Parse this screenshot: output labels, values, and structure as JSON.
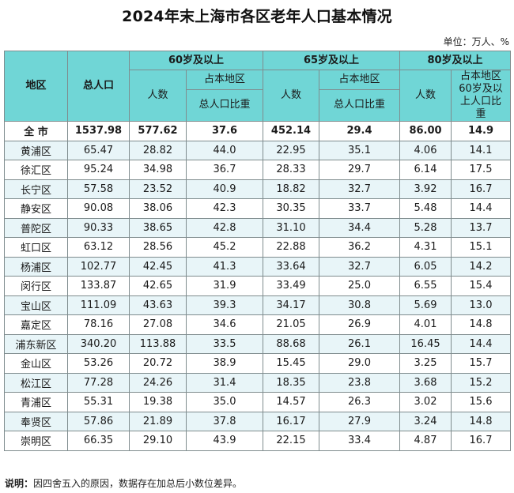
{
  "title": "2024年末上海市各区老年人口基本情况",
  "unit": "单位：万人、%",
  "colors": {
    "header_bg": "#70d6d6",
    "alt_row_bg": "#e8f5f8",
    "border": "#7f8c8e"
  },
  "table": {
    "headers": {
      "region": "地区",
      "total_population": "总人口",
      "group_60": "60岁及以上",
      "group_65": "65岁及以上",
      "group_80": "80岁及以上",
      "count": "人数",
      "share_line1": "占本地区",
      "share_line2": "总人口比重",
      "share_80": "占本地区60岁及以上人口比重"
    },
    "total_row": {
      "region": "全 市",
      "total": "1537.98",
      "p60": "577.62",
      "p60_share": "37.6",
      "p65": "452.14",
      "p65_share": "29.4",
      "p80": "86.00",
      "p80_share": "14.9"
    },
    "rows": [
      {
        "region": "黄浦区",
        "total": "65.47",
        "p60": "28.82",
        "p60_share": "44.0",
        "p65": "22.95",
        "p65_share": "35.1",
        "p80": "4.06",
        "p80_share": "14.1"
      },
      {
        "region": "徐汇区",
        "total": "95.24",
        "p60": "34.98",
        "p60_share": "36.7",
        "p65": "28.33",
        "p65_share": "29.7",
        "p80": "6.14",
        "p80_share": "17.5"
      },
      {
        "region": "长宁区",
        "total": "57.58",
        "p60": "23.52",
        "p60_share": "40.9",
        "p65": "18.82",
        "p65_share": "32.7",
        "p80": "3.92",
        "p80_share": "16.7"
      },
      {
        "region": "静安区",
        "total": "90.08",
        "p60": "38.06",
        "p60_share": "42.3",
        "p65": "30.35",
        "p65_share": "33.7",
        "p80": "5.48",
        "p80_share": "14.4"
      },
      {
        "region": "普陀区",
        "total": "90.33",
        "p60": "38.65",
        "p60_share": "42.8",
        "p65": "31.10",
        "p65_share": "34.4",
        "p80": "5.28",
        "p80_share": "13.7"
      },
      {
        "region": "虹口区",
        "total": "63.12",
        "p60": "28.56",
        "p60_share": "45.2",
        "p65": "22.88",
        "p65_share": "36.2",
        "p80": "4.31",
        "p80_share": "15.1"
      },
      {
        "region": "杨浦区",
        "total": "102.77",
        "p60": "42.45",
        "p60_share": "41.3",
        "p65": "33.64",
        "p65_share": "32.7",
        "p80": "6.05",
        "p80_share": "14.2"
      },
      {
        "region": "闵行区",
        "total": "133.87",
        "p60": "42.65",
        "p60_share": "31.9",
        "p65": "33.49",
        "p65_share": "25.0",
        "p80": "6.55",
        "p80_share": "15.4"
      },
      {
        "region": "宝山区",
        "total": "111.09",
        "p60": "43.63",
        "p60_share": "39.3",
        "p65": "34.17",
        "p65_share": "30.8",
        "p80": "5.69",
        "p80_share": "13.0"
      },
      {
        "region": "嘉定区",
        "total": "78.16",
        "p60": "27.08",
        "p60_share": "34.6",
        "p65": "21.05",
        "p65_share": "26.9",
        "p80": "4.01",
        "p80_share": "14.8"
      },
      {
        "region": "浦东新区",
        "total": "340.20",
        "p60": "113.88",
        "p60_share": "33.5",
        "p65": "88.68",
        "p65_share": "26.1",
        "p80": "16.45",
        "p80_share": "14.4"
      },
      {
        "region": "金山区",
        "total": "53.26",
        "p60": "20.72",
        "p60_share": "38.9",
        "p65": "15.45",
        "p65_share": "29.0",
        "p80": "3.25",
        "p80_share": "15.7"
      },
      {
        "region": "松江区",
        "total": "77.28",
        "p60": "24.26",
        "p60_share": "31.4",
        "p65": "18.35",
        "p65_share": "23.8",
        "p80": "3.68",
        "p80_share": "15.2"
      },
      {
        "region": "青浦区",
        "total": "55.31",
        "p60": "19.38",
        "p60_share": "35.0",
        "p65": "14.57",
        "p65_share": "26.3",
        "p80": "3.02",
        "p80_share": "15.6"
      },
      {
        "region": "奉贤区",
        "total": "57.86",
        "p60": "21.89",
        "p60_share": "37.8",
        "p65": "16.17",
        "p65_share": "27.9",
        "p80": "3.24",
        "p80_share": "14.8"
      },
      {
        "region": "崇明区",
        "total": "66.35",
        "p60": "29.10",
        "p60_share": "43.9",
        "p65": "22.15",
        "p65_share": "33.4",
        "p80": "4.87",
        "p80_share": "16.7"
      }
    ]
  },
  "note": {
    "label": "说明：",
    "text": "因四舍五入的原因，数据存在加总后小数位差异。"
  }
}
